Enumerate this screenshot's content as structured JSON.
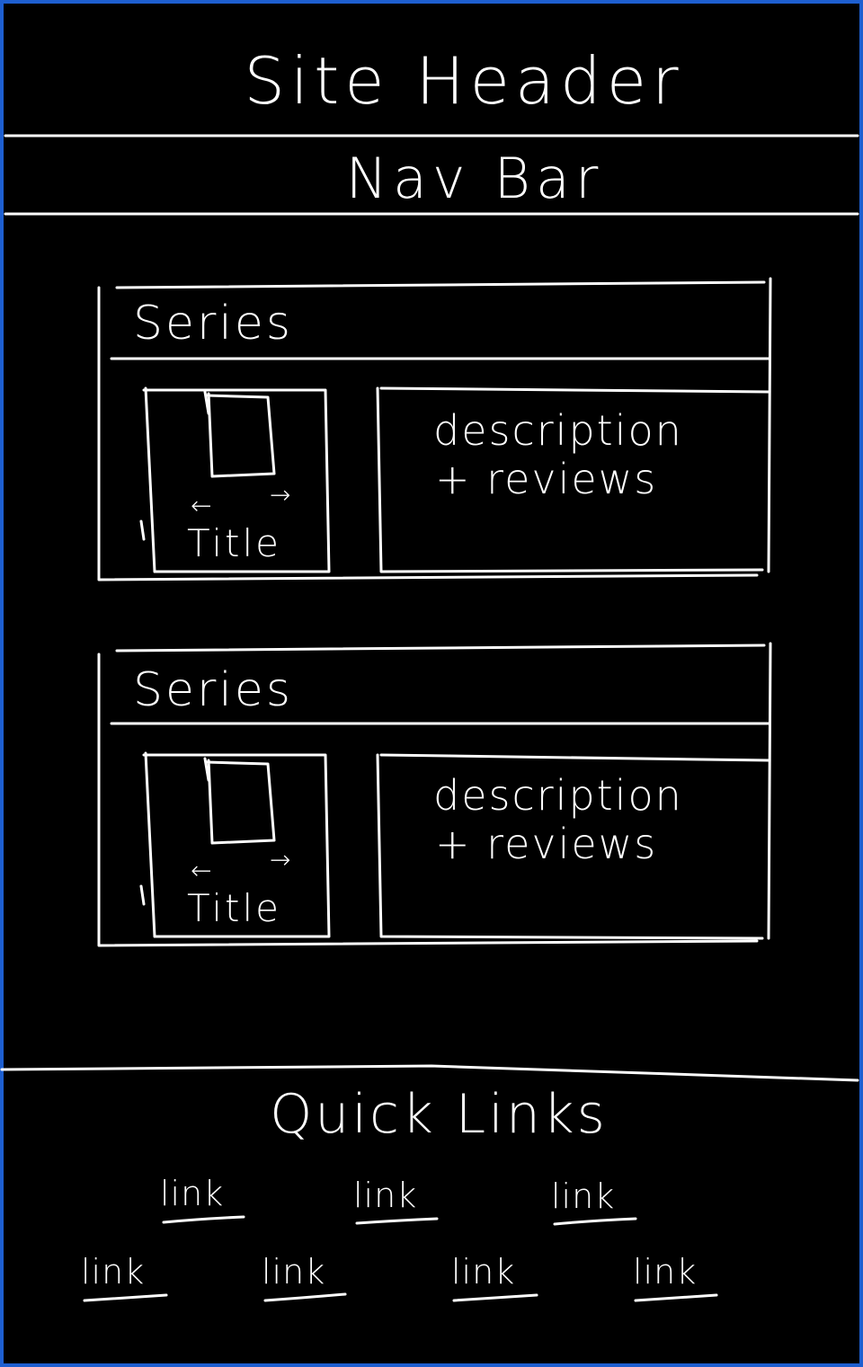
{
  "header": {
    "title": "Site Header"
  },
  "nav": {
    "title": "Nav Bar"
  },
  "series": [
    {
      "label": "Series",
      "card": {
        "title": "Title",
        "left_arrow": "←",
        "right_arrow": "→"
      },
      "description": [
        "description",
        "+ reviews"
      ]
    },
    {
      "label": "Series",
      "card": {
        "title": "Title",
        "left_arrow": "←",
        "right_arrow": "→"
      },
      "description": [
        "description",
        "+ reviews"
      ]
    }
  ],
  "footer": {
    "title": "Quick Links",
    "links": [
      "link",
      "link",
      "link",
      "link",
      "link",
      "link",
      "link"
    ]
  },
  "colors": {
    "background": "#000000",
    "ink": "#ffffff",
    "frame": "#1e5fd0"
  }
}
